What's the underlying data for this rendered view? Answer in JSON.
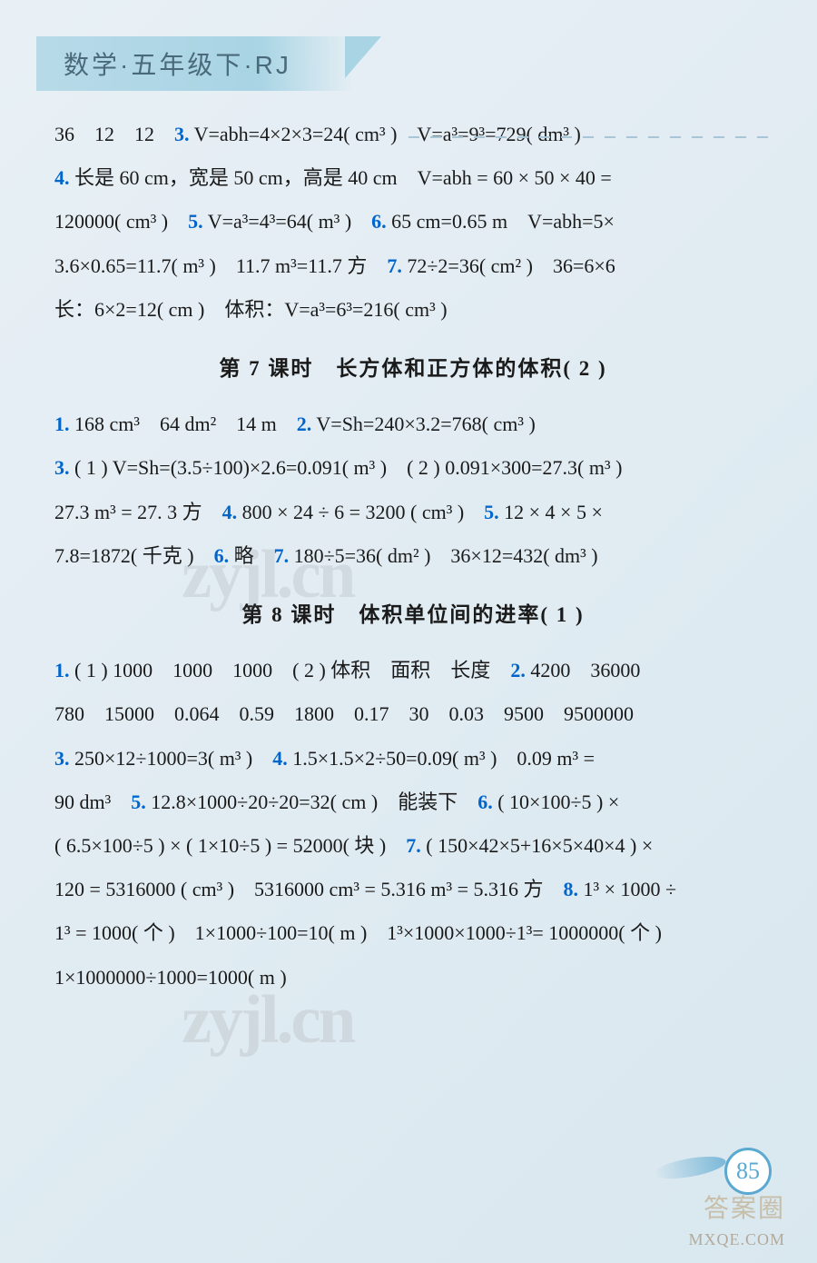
{
  "header": {
    "title": "数学·五年级下·RJ"
  },
  "colors": {
    "question_number": "#0066cc",
    "body_text": "#1a1a1a",
    "header_bg": "#b8dae8",
    "page_accent": "#5ba8d0",
    "background_start": "#e8f0f5",
    "background_end": "#d9e7ef"
  },
  "typography": {
    "body_fontsize": 22,
    "header_fontsize": 28,
    "section_fontsize": 23
  },
  "page_number": "85",
  "section_top": {
    "line1_prefix": "36　12　12　",
    "q3_num": "3.",
    "q3_text": " V=abh=4×2×3=24( cm³ )　V=a³=9³=729( dm³ )",
    "q4_num": "4.",
    "q4_text_a": " 长是 60 cm，宽是 50 cm，高是 40 cm　V=abh = 60 × 50 × 40 =",
    "q4_text_b": "120000( cm³ )　",
    "q5_num": "5.",
    "q5_text": " V=a³=4³=64( m³ )　",
    "q6_num": "6.",
    "q6_text_a": " 65 cm=0.65 m　V=abh=5×",
    "q6_text_b": "3.6×0.65=11.7( m³ )　11.7 m³=11.7 方　",
    "q7_num": "7.",
    "q7_text_a": " 72÷2=36( cm² )　36=6×6",
    "q7_text_b": "长：6×2=12( cm )　体积：V=a³=6³=216( cm³ )"
  },
  "section7": {
    "title": "第 7 课时　长方体和正方体的体积( 2 )",
    "q1_num": "1.",
    "q1_text": " 168 cm³　64 dm²　14 m　",
    "q2_num": "2.",
    "q2_text": " V=Sh=240×3.2=768( cm³ )",
    "q3_num": "3.",
    "q3_text_a": " ( 1 ) V=Sh=(3.5÷100)×2.6=0.091( m³ )　( 2 ) 0.091×300=27.3( m³ )",
    "q3_text_b": "27.3 m³ = 27. 3 方　",
    "q4_num": "4.",
    "q4_text": " 800 × 24 ÷ 6 = 3200 ( cm³ )　",
    "q5_num": "5.",
    "q5_text_a": " 12 × 4 × 5 ×",
    "q5_text_b": "7.8=1872( 千克 )　",
    "q6_num": "6.",
    "q6_text": " 略　",
    "q7_num": "7.",
    "q7_text": " 180÷5=36( dm² )　36×12=432( dm³ )"
  },
  "section8": {
    "title": "第 8 课时　体积单位间的进率( 1 )",
    "q1_num": "1.",
    "q1_text": " ( 1 ) 1000　1000　1000　( 2 ) 体积　面积　长度　",
    "q2_num": "2.",
    "q2_text_a": " 4200　36000",
    "q2_text_b": "780　15000　0.064　0.59　1800　0.17　30　0.03　9500　9500000",
    "q3_num": "3.",
    "q3_text": " 250×12÷1000=3( m³ )　",
    "q4_num": "4.",
    "q4_text_a": " 1.5×1.5×2÷50=0.09( m³ )　0.09 m³ =",
    "q4_text_b": "90 dm³　",
    "q5_num": "5.",
    "q5_text": " 12.8×1000÷20÷20=32( cm )　能装下　",
    "q6_num": "6.",
    "q6_text_a": " ( 10×100÷5 ) ×",
    "q6_text_b": "( 6.5×100÷5 ) × ( 1×10÷5 ) = 52000( 块 )　",
    "q7_num": "7.",
    "q7_text_a": " ( 150×42×5+16×5×40×4 ) ×",
    "q7_text_b": "120 = 5316000 ( cm³ )　5316000 cm³ = 5.316 m³ = 5.316 方　",
    "q8_num": "8.",
    "q8_text_a": " 1³ × 1000 ÷",
    "q8_text_b": "1³ = 1000( 个 )　1×1000÷100=10( m )　1³×1000×1000÷1³= 1000000( 个 )",
    "q8_text_c": "1×1000000÷1000=1000( m )"
  },
  "watermarks": {
    "main": "zyjl.cn",
    "bottom1": "答案圈",
    "bottom2": "MXQE.COM"
  }
}
